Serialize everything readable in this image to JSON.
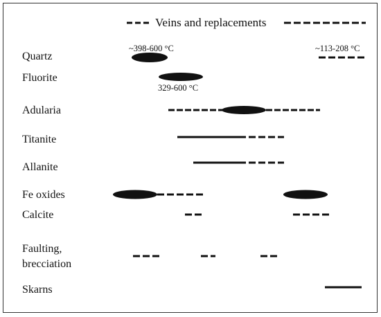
{
  "title": "Veins and replacements",
  "temps": {
    "quartz_early": "~398-600 °C",
    "quartz_late": "~113-208 °C",
    "fluorite": "329-600 °C"
  },
  "rows": [
    {
      "id": "quartz",
      "label": "Quartz"
    },
    {
      "id": "fluorite",
      "label": "Fluorite"
    },
    {
      "id": "adularia",
      "label": "Adularia"
    },
    {
      "id": "titanite",
      "label": "Titanite"
    },
    {
      "id": "allanite",
      "label": "Allanite"
    },
    {
      "id": "fe-oxides",
      "label": "Fe oxides"
    },
    {
      "id": "calcite",
      "label": "Calcite"
    },
    {
      "id": "faulting",
      "label": "Faulting,",
      "label2": "brecciation"
    },
    {
      "id": "skarns",
      "label": "Skarns"
    }
  ],
  "colors": {
    "ink": "#111111",
    "frame": "#333333",
    "background": "#ffffff"
  }
}
